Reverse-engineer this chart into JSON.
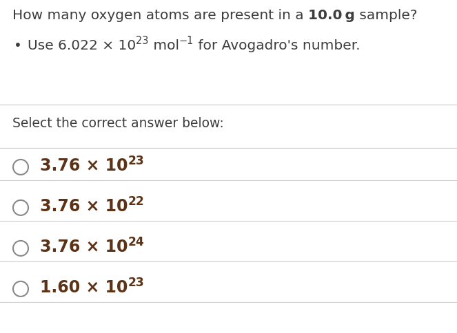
{
  "background_color": "#ffffff",
  "text_color": "#3d3d3d",
  "answer_text_color": "#5c3317",
  "circle_color": "#888888",
  "line_color": "#cccccc",
  "title_fontsize": 14.5,
  "bullet_fontsize": 14.5,
  "answer_fontsize": 17,
  "select_fontsize": 13.5,
  "answers": [
    {
      "main": "3.76 × 10",
      "sup": "23"
    },
    {
      "main": "3.76 × 10",
      "sup": "22"
    },
    {
      "main": "3.76 × 10",
      "sup": "24"
    },
    {
      "main": "1.60 × 10",
      "sup": "23"
    }
  ]
}
